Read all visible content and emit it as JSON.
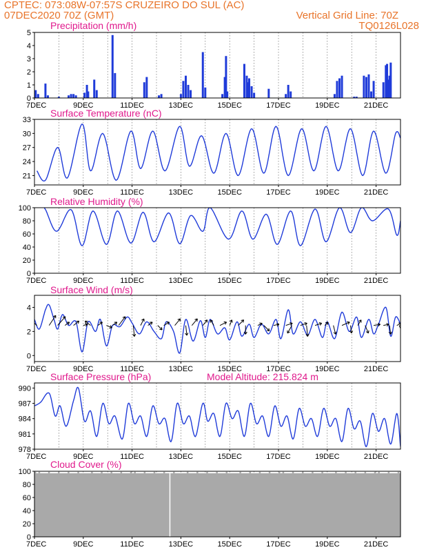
{
  "header": {
    "line1": "CPTEC:   073:08W-07:57S   CRUZEIRO DO SUL (AC)",
    "line2": "07DEC2020 70Z (GMT)",
    "grid_note": "Vertical Grid Line: 70Z",
    "code": "TQ0126L028"
  },
  "colors": {
    "header": "#e8742a",
    "title": "#e0198c",
    "line": "#1f3bd9",
    "cloud": "#a9a9a9",
    "arrow": "#000000"
  },
  "x_ticks": [
    "7DEC",
    "9DEC",
    "11DEC",
    "13DEC",
    "15DEC",
    "17DEC",
    "19DEC",
    "21DEC"
  ],
  "x_range_days": [
    0,
    15
  ],
  "chart_data": [
    {
      "type": "bar",
      "title": "Precipitation (mm/h)",
      "ylim": [
        0,
        5
      ],
      "yticks": [
        "0",
        "1",
        "2",
        "3",
        "4",
        "5"
      ],
      "x_unit": "days since 7DEC2020 00Z",
      "points": [
        [
          0.05,
          0.6
        ],
        [
          0.15,
          0.3
        ],
        [
          0.45,
          1.1
        ],
        [
          0.55,
          0.2
        ],
        [
          1.0,
          0.1
        ],
        [
          1.4,
          0.2
        ],
        [
          1.5,
          0.3
        ],
        [
          1.6,
          0.3
        ],
        [
          1.7,
          0.2
        ],
        [
          2.05,
          0.4
        ],
        [
          2.15,
          1.0
        ],
        [
          2.2,
          0.5
        ],
        [
          2.45,
          1.4
        ],
        [
          2.55,
          0.6
        ],
        [
          3.2,
          4.8
        ],
        [
          3.3,
          1.9
        ],
        [
          4.5,
          1.2
        ],
        [
          4.6,
          1.6
        ],
        [
          5.1,
          0.2
        ],
        [
          5.2,
          0.3
        ],
        [
          6.0,
          0.3
        ],
        [
          6.1,
          1.3
        ],
        [
          6.2,
          1.7
        ],
        [
          6.3,
          1.0
        ],
        [
          6.4,
          0.6
        ],
        [
          6.9,
          3.5
        ],
        [
          7.0,
          0.8
        ],
        [
          7.7,
          0.3
        ],
        [
          7.8,
          1.6
        ],
        [
          7.85,
          3.2
        ],
        [
          7.9,
          0.5
        ],
        [
          8.6,
          2.6
        ],
        [
          8.7,
          1.7
        ],
        [
          8.75,
          1.2
        ],
        [
          8.8,
          1.5
        ],
        [
          8.9,
          0.9
        ],
        [
          9.0,
          0.4
        ],
        [
          9.6,
          0.7
        ],
        [
          10.3,
          0.3
        ],
        [
          10.4,
          1.0
        ],
        [
          10.5,
          0.5
        ],
        [
          12.3,
          0.3
        ],
        [
          12.4,
          1.3
        ],
        [
          12.5,
          1.5
        ],
        [
          12.6,
          1.7
        ],
        [
          13.1,
          0.1
        ],
        [
          13.2,
          0.1
        ],
        [
          13.5,
          1.7
        ],
        [
          13.6,
          1.6
        ],
        [
          13.7,
          1.8
        ],
        [
          13.8,
          0.5
        ],
        [
          13.9,
          1.3
        ],
        [
          14.3,
          1.2
        ],
        [
          14.4,
          2.5
        ],
        [
          14.45,
          2.6
        ],
        [
          14.5,
          1.4
        ],
        [
          14.55,
          1.7
        ],
        [
          14.6,
          2.7
        ]
      ]
    },
    {
      "type": "line",
      "title": "Surface Temperature (nC)",
      "ylim": [
        19,
        33
      ],
      "yticks": [
        "21",
        "24",
        "27",
        "30",
        "33"
      ],
      "x_unit": "days since 7DEC2020 00Z",
      "peaks": [
        [
          0.1,
          22.0
        ],
        [
          0.45,
          20.0
        ],
        [
          0.95,
          27.0
        ],
        [
          1.35,
          20.5
        ],
        [
          1.95,
          32.0
        ],
        [
          2.3,
          22.0
        ],
        [
          2.8,
          30.0
        ],
        [
          3.35,
          20.0
        ],
        [
          3.95,
          30.5
        ],
        [
          4.35,
          22.5
        ],
        [
          4.85,
          30.5
        ],
        [
          5.35,
          22.0
        ],
        [
          5.95,
          31.5
        ],
        [
          6.35,
          23.0
        ],
        [
          6.85,
          29.5
        ],
        [
          7.35,
          21.5
        ],
        [
          7.85,
          30.0
        ],
        [
          8.35,
          21.0
        ],
        [
          8.9,
          31.0
        ],
        [
          9.4,
          21.5
        ],
        [
          9.9,
          31.5
        ],
        [
          10.4,
          21.0
        ],
        [
          10.95,
          31.0
        ],
        [
          11.45,
          22.0
        ],
        [
          11.95,
          31.5
        ],
        [
          12.45,
          22.0
        ],
        [
          12.95,
          31.0
        ],
        [
          13.45,
          21.0
        ],
        [
          13.9,
          30.5
        ],
        [
          14.4,
          21.5
        ],
        [
          14.8,
          30.0
        ],
        [
          15.0,
          29.0
        ]
      ]
    },
    {
      "type": "line",
      "title": "Relative Humidity (%)",
      "ylim": [
        0,
        100
      ],
      "yticks": [
        "0",
        "20",
        "40",
        "60",
        "80",
        "100"
      ],
      "x_unit": "days since 7DEC2020 00Z",
      "peaks": [
        [
          0.0,
          100
        ],
        [
          0.4,
          100
        ],
        [
          0.9,
          64
        ],
        [
          1.5,
          97
        ],
        [
          1.95,
          42
        ],
        [
          2.4,
          95
        ],
        [
          2.95,
          44
        ],
        [
          3.4,
          95
        ],
        [
          3.95,
          46
        ],
        [
          4.45,
          93
        ],
        [
          4.9,
          48
        ],
        [
          5.5,
          92
        ],
        [
          5.95,
          45
        ],
        [
          6.4,
          88
        ],
        [
          6.9,
          64
        ],
        [
          7.2,
          100
        ],
        [
          7.95,
          52
        ],
        [
          8.5,
          95
        ],
        [
          8.95,
          52
        ],
        [
          9.5,
          90
        ],
        [
          9.95,
          44
        ],
        [
          10.5,
          95
        ],
        [
          10.9,
          42
        ],
        [
          11.5,
          98
        ],
        [
          11.95,
          48
        ],
        [
          12.5,
          100
        ],
        [
          12.95,
          62
        ],
        [
          13.4,
          100
        ],
        [
          13.85,
          80
        ],
        [
          14.5,
          98
        ],
        [
          14.85,
          58
        ],
        [
          15.0,
          80
        ]
      ]
    },
    {
      "type": "line",
      "title": "Surface Wind (m/s)",
      "ylim": [
        -0.5,
        5
      ],
      "yticks": [
        "0",
        "2",
        "4"
      ],
      "x_unit": "days since 7DEC2020 00Z",
      "peaks": [
        [
          0.0,
          3.0
        ],
        [
          0.2,
          2.2
        ],
        [
          0.45,
          3.8
        ],
        [
          0.6,
          4.2
        ],
        [
          0.8,
          3.0
        ],
        [
          0.95,
          2.2
        ],
        [
          1.15,
          3.4
        ],
        [
          1.4,
          2.5
        ],
        [
          1.7,
          2.8
        ],
        [
          1.95,
          0.3
        ],
        [
          2.2,
          2.8
        ],
        [
          2.5,
          2.0
        ],
        [
          2.7,
          3.0
        ],
        [
          2.95,
          0.8
        ],
        [
          3.2,
          2.5
        ],
        [
          3.5,
          2.4
        ],
        [
          3.8,
          3.2
        ],
        [
          4.0,
          2.7
        ],
        [
          4.3,
          1.8
        ],
        [
          4.6,
          2.8
        ],
        [
          4.9,
          2.0
        ],
        [
          5.2,
          1.4
        ],
        [
          5.4,
          2.8
        ],
        [
          5.7,
          2.0
        ],
        [
          5.95,
          0.2
        ],
        [
          6.2,
          3.0
        ],
        [
          6.5,
          1.2
        ],
        [
          6.8,
          2.9
        ],
        [
          7.0,
          1.5
        ],
        [
          7.2,
          3.0
        ],
        [
          7.5,
          1.8
        ],
        [
          7.8,
          2.3
        ],
        [
          8.0,
          1.3
        ],
        [
          8.3,
          2.8
        ],
        [
          8.5,
          1.6
        ],
        [
          8.8,
          2.6
        ],
        [
          9.0,
          1.5
        ],
        [
          9.3,
          2.6
        ],
        [
          9.6,
          1.8
        ],
        [
          9.9,
          3.0
        ],
        [
          10.1,
          1.4
        ],
        [
          10.4,
          3.8
        ],
        [
          10.6,
          1.8
        ],
        [
          10.9,
          2.8
        ],
        [
          11.2,
          1.7
        ],
        [
          11.5,
          3.0
        ],
        [
          11.8,
          1.5
        ],
        [
          12.0,
          2.8
        ],
        [
          12.3,
          1.4
        ],
        [
          12.6,
          3.6
        ],
        [
          12.9,
          2.0
        ],
        [
          13.2,
          3.2
        ],
        [
          13.4,
          1.5
        ],
        [
          13.7,
          3.0
        ],
        [
          13.9,
          1.8
        ],
        [
          14.1,
          2.6
        ],
        [
          14.4,
          4.0
        ],
        [
          14.6,
          1.6
        ],
        [
          14.8,
          3.2
        ],
        [
          15.0,
          2.6
        ]
      ],
      "vectors": [
        [
          0.1,
          -1.0,
          0.9
        ],
        [
          0.6,
          0.6,
          0.9
        ],
        [
          0.95,
          0.7,
          0.8
        ],
        [
          1.25,
          0.4,
          0.3
        ],
        [
          1.6,
          0.5,
          0.4
        ],
        [
          2.0,
          0.4,
          0.1
        ],
        [
          2.3,
          -0.5,
          0.4
        ],
        [
          2.6,
          0.4,
          0.3
        ],
        [
          2.95,
          0.5,
          -0.2
        ],
        [
          3.2,
          0.4,
          0.3
        ],
        [
          3.45,
          0.6,
          0.8
        ],
        [
          4.05,
          0.1,
          -1.0
        ],
        [
          4.35,
          0.3,
          0.6
        ],
        [
          4.65,
          0.4,
          0.3
        ],
        [
          5.05,
          0.4,
          -0.4
        ],
        [
          5.3,
          0.5,
          0.3
        ],
        [
          5.75,
          0.5,
          0.6
        ],
        [
          6.2,
          0.1,
          -0.9
        ],
        [
          6.45,
          0.5,
          0.6
        ],
        [
          6.9,
          0.4,
          0.5
        ],
        [
          7.35,
          -0.3,
          0.5
        ],
        [
          7.6,
          0.6,
          0.3
        ],
        [
          8.0,
          0.2,
          0.5
        ],
        [
          8.35,
          0.5,
          0.5
        ],
        [
          8.65,
          0.0,
          -0.8
        ],
        [
          9.15,
          0.4,
          0.2
        ],
        [
          9.4,
          0.5,
          -0.5
        ],
        [
          9.8,
          0.5,
          0.1
        ],
        [
          10.3,
          0.6,
          0.2
        ],
        [
          10.55,
          -0.4,
          -0.7
        ],
        [
          10.9,
          0.6,
          0.2
        ],
        [
          11.15,
          0.1,
          -1.0
        ],
        [
          11.5,
          0.6,
          0.2
        ],
        [
          11.9,
          0.3,
          0.3
        ],
        [
          12.25,
          0.2,
          -0.8
        ],
        [
          12.6,
          0.7,
          0.3
        ],
        [
          12.95,
          0.1,
          -0.7
        ],
        [
          13.25,
          0.3,
          0.5
        ],
        [
          13.55,
          0.3,
          -0.7
        ],
        [
          13.9,
          0.6,
          0.1
        ],
        [
          14.3,
          0.5,
          0.1
        ],
        [
          14.55,
          0.1,
          -0.8
        ],
        [
          14.95,
          0.4,
          -1.0
        ],
        [
          14.85,
          0.4,
          0.2
        ]
      ]
    },
    {
      "type": "line",
      "title": "Surface Pressure (hPa)",
      "annotation": "Model Altitude: 215.824 m",
      "ylim": [
        978,
        991
      ],
      "yticks": [
        "978",
        "981",
        "984",
        "987",
        "990"
      ],
      "x_unit": "days since 7DEC2020 00Z",
      "peaks": [
        [
          0.0,
          986.5
        ],
        [
          0.25,
          987.2
        ],
        [
          0.6,
          989.0
        ],
        [
          0.85,
          984.5
        ],
        [
          1.05,
          986.5
        ],
        [
          1.3,
          982.5
        ],
        [
          1.6,
          987.5
        ],
        [
          1.8,
          990.0
        ],
        [
          2.05,
          983.5
        ],
        [
          2.3,
          985.5
        ],
        [
          2.55,
          980.5
        ],
        [
          2.8,
          987.0
        ],
        [
          3.05,
          983.0
        ],
        [
          3.3,
          984.5
        ],
        [
          3.6,
          980.0
        ],
        [
          3.85,
          987.0
        ],
        [
          4.1,
          983.0
        ],
        [
          4.35,
          984.5
        ],
        [
          4.6,
          980.5
        ],
        [
          4.85,
          986.5
        ],
        [
          5.1,
          983.0
        ],
        [
          5.35,
          984.0
        ],
        [
          5.6,
          979.5
        ],
        [
          5.85,
          987.0
        ],
        [
          6.1,
          983.0
        ],
        [
          6.35,
          984.5
        ],
        [
          6.6,
          980.5
        ],
        [
          6.9,
          987.0
        ],
        [
          7.1,
          983.5
        ],
        [
          7.35,
          985.0
        ],
        [
          7.6,
          980.5
        ],
        [
          7.85,
          987.0
        ],
        [
          8.1,
          984.0
        ],
        [
          8.35,
          985.5
        ],
        [
          8.6,
          980.5
        ],
        [
          8.85,
          987.0
        ],
        [
          9.1,
          983.0
        ],
        [
          9.35,
          984.5
        ],
        [
          9.6,
          980.5
        ],
        [
          9.85,
          986.5
        ],
        [
          10.1,
          982.5
        ],
        [
          10.35,
          984.5
        ],
        [
          10.6,
          980.0
        ],
        [
          10.85,
          986.0
        ],
        [
          11.1,
          982.5
        ],
        [
          11.35,
          984.0
        ],
        [
          11.6,
          980.5
        ],
        [
          11.85,
          986.0
        ],
        [
          12.1,
          982.5
        ],
        [
          12.35,
          984.0
        ],
        [
          12.6,
          979.5
        ],
        [
          12.85,
          986.0
        ],
        [
          13.1,
          982.0
        ],
        [
          13.35,
          983.5
        ],
        [
          13.6,
          978.5
        ],
        [
          13.85,
          985.0
        ],
        [
          14.1,
          981.5
        ],
        [
          14.35,
          984.0
        ],
        [
          14.6,
          979.0
        ],
        [
          14.85,
          985.0
        ],
        [
          15.0,
          978.5
        ]
      ]
    },
    {
      "type": "area",
      "title": "Cloud Cover (%)",
      "ylim": [
        0,
        100
      ],
      "yticks": [
        "0",
        "20",
        "40",
        "60",
        "80",
        "100"
      ],
      "x_unit": "days since 7DEC2020 00Z",
      "level": 97,
      "gap_day": 5.55
    }
  ]
}
